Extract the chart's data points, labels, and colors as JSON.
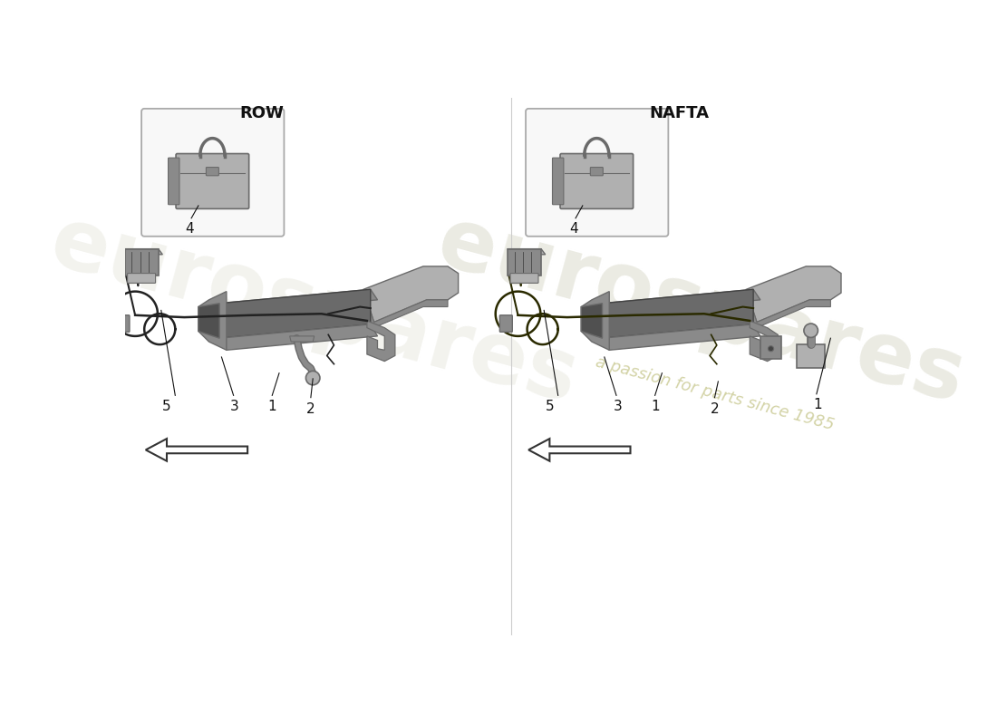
{
  "background_color": "#ffffff",
  "left_label": "ROW",
  "right_label": "NAFTA",
  "watermark_lines": [
    "eurospares",
    "a passion for parts since 1985"
  ],
  "watermark_color": "#d8d8c8",
  "watermark_italic_color": "#c8c890",
  "divider_color": "#cccccc",
  "part_label_color": "#111111",
  "line_color": "#111111",
  "gray_dark": "#6a6a6a",
  "gray_mid": "#8a8a8a",
  "gray_light": "#b0b0b0",
  "gray_lighter": "#c8c8c8",
  "wire_color": "#222222",
  "wire_color_nafta": "#2a2a00",
  "label_fontsize": 11,
  "section_label_fontsize": 13
}
